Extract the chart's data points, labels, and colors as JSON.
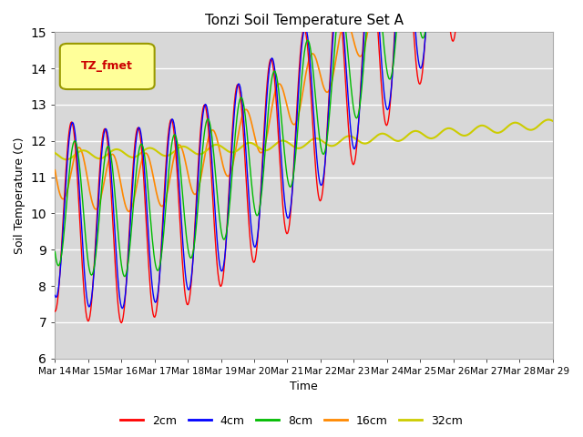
{
  "title": "Tonzi Soil Temperature Set A",
  "xlabel": "Time",
  "ylabel": "Soil Temperature (C)",
  "ylim": [
    6.0,
    15.0
  ],
  "yticks": [
    6.0,
    7.0,
    8.0,
    9.0,
    10.0,
    11.0,
    12.0,
    13.0,
    14.0,
    15.0
  ],
  "x_labels": [
    "Mar 14",
    "Mar 15",
    "Mar 16",
    "Mar 17",
    "Mar 18",
    "Mar 19",
    "Mar 20",
    "Mar 21",
    "Mar 22",
    "Mar 23",
    "Mar 24",
    "Mar 25",
    "Mar 26",
    "Mar 27",
    "Mar 28",
    "Mar 29"
  ],
  "legend_label": "TZ_fmet",
  "colors": {
    "2cm": "#ff0000",
    "4cm": "#0000ff",
    "8cm": "#00bb00",
    "16cm": "#ff8800",
    "32cm": "#cccc00"
  },
  "fig_bg": "#ffffff",
  "axes_bg": "#d8d8d8",
  "grid_color": "#ffffff",
  "legend_box_facecolor": "#ffff99",
  "legend_box_edgecolor": "#999900",
  "legend_text_color": "#cc0000"
}
